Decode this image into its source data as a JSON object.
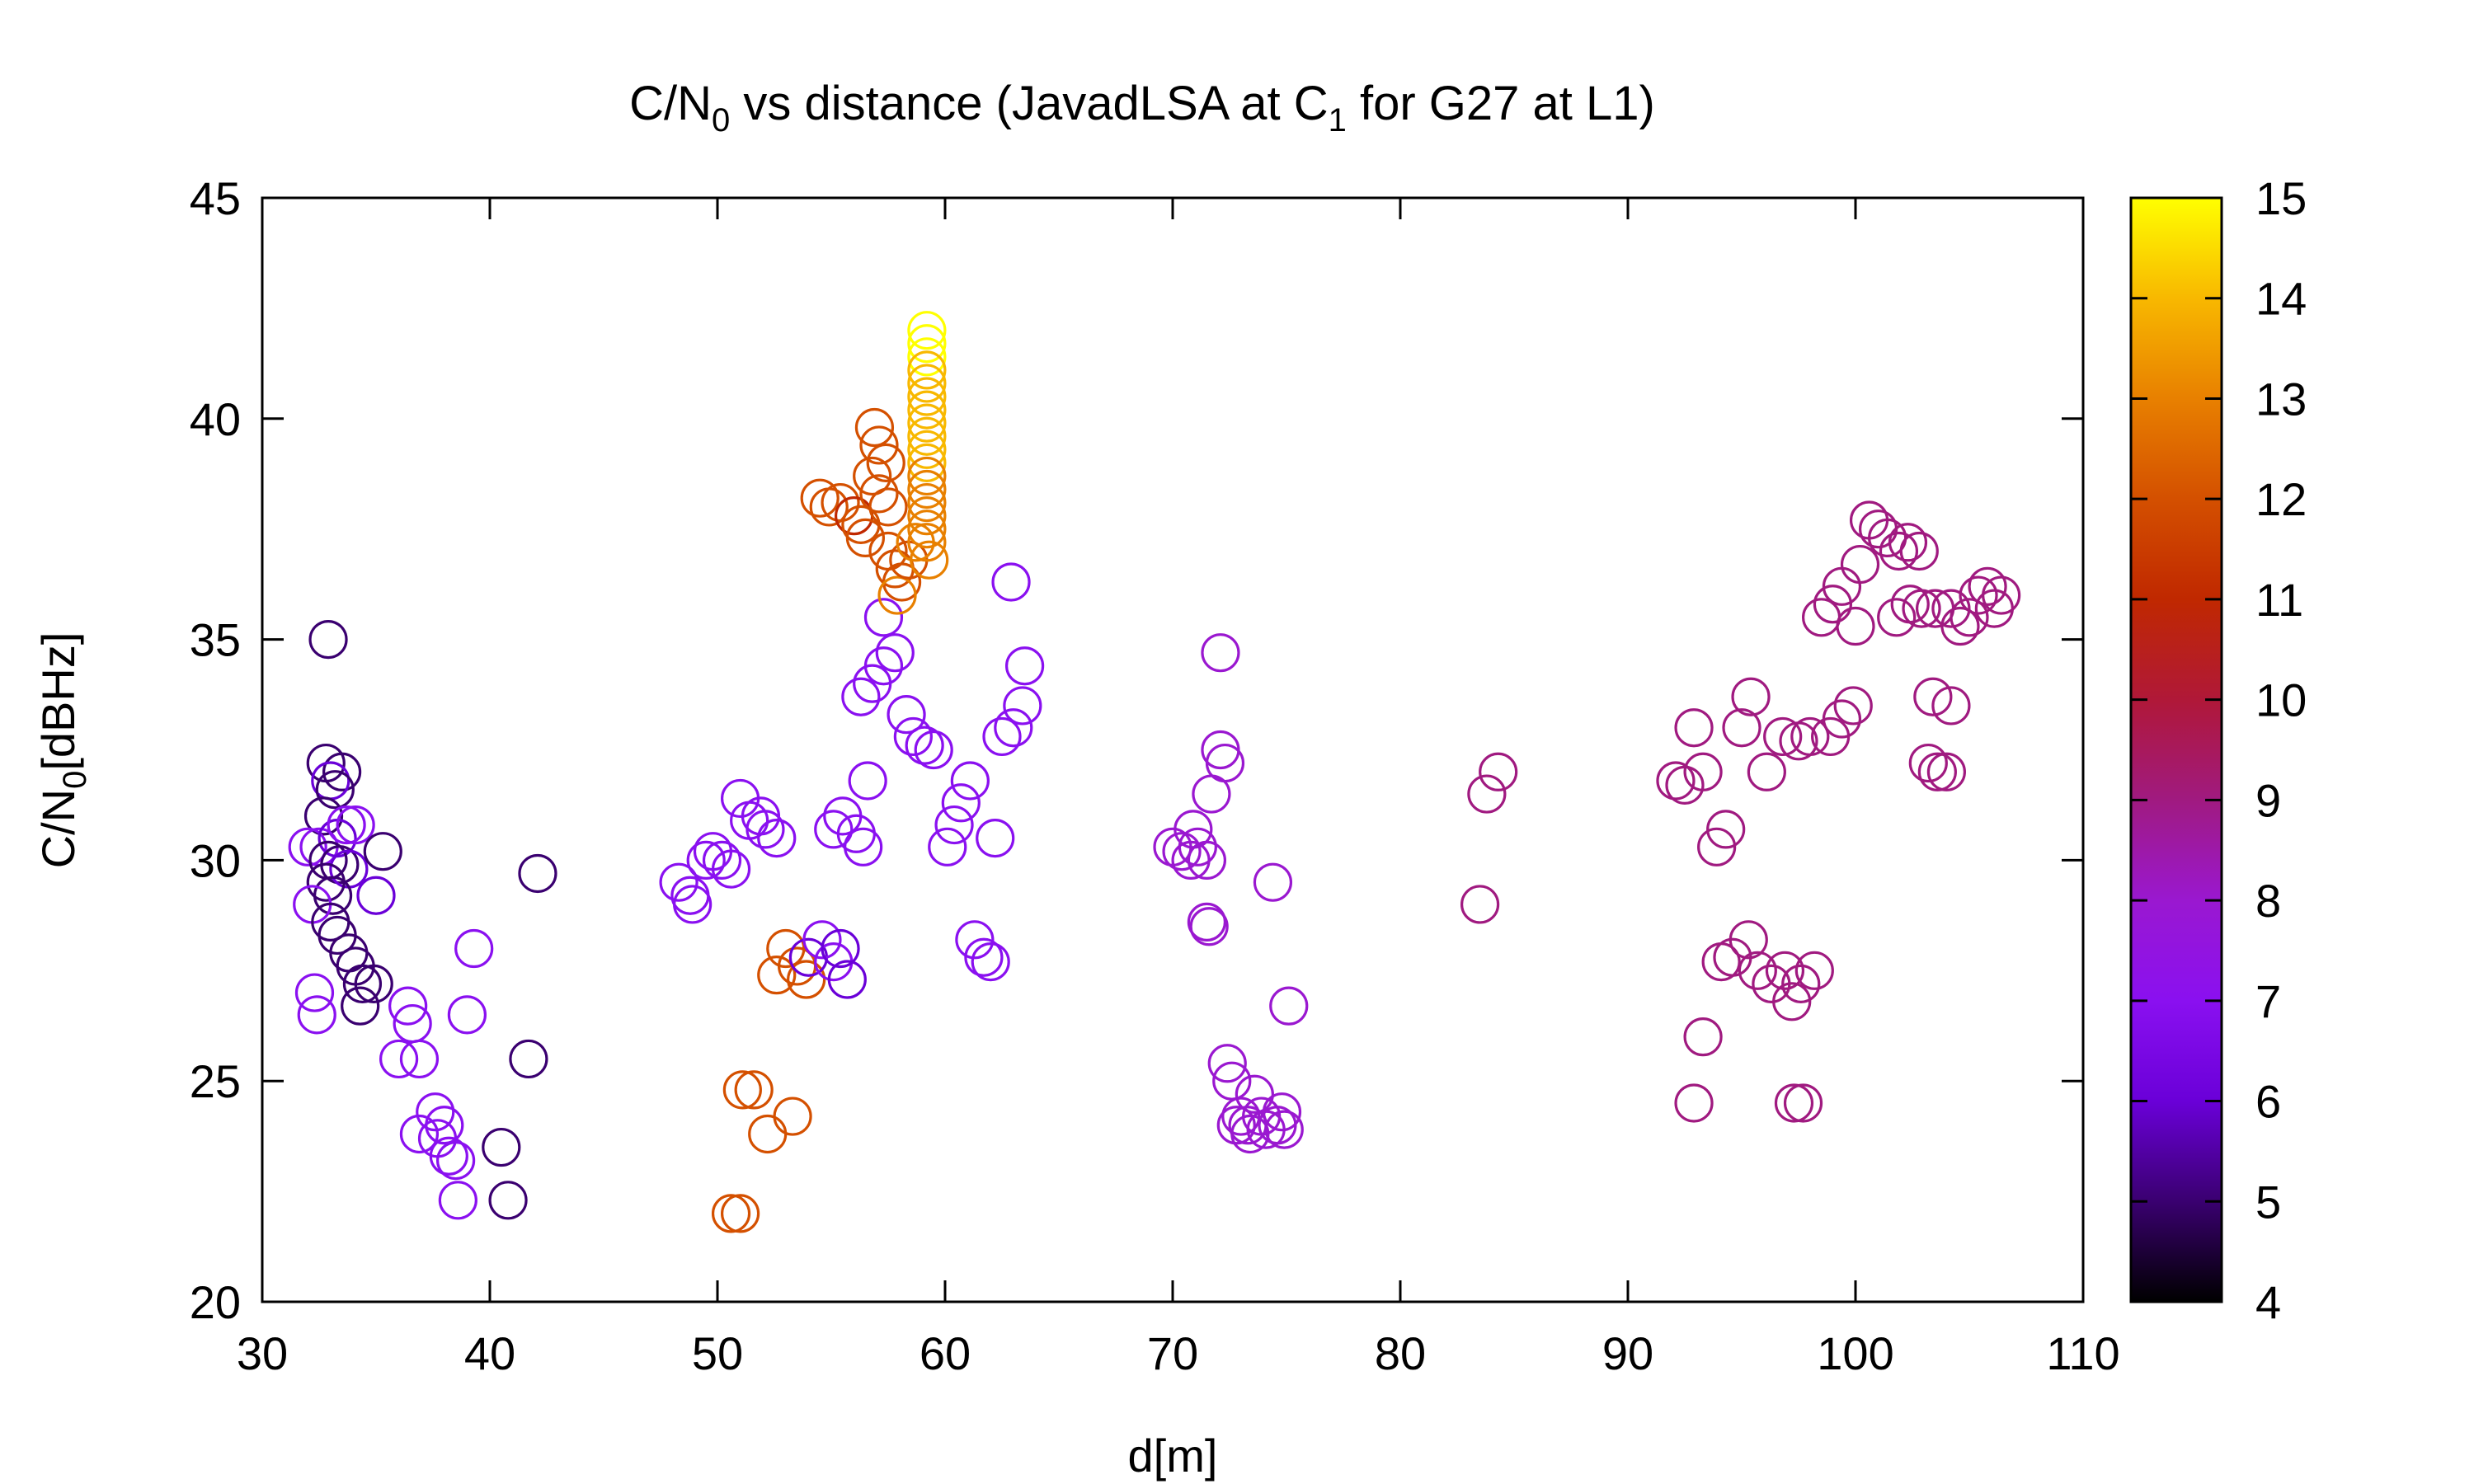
{
  "chart_data": {
    "type": "scatter",
    "title": {
      "prefix": "C/N",
      "sub0": "0",
      "mid": " vs distance (JavadLSA at C",
      "sub1": "1",
      "suffix": " for G27 at L1)"
    },
    "xlabel": "d[m]",
    "ylabel": {
      "prefix": "C/N",
      "sub": "0",
      "suffix": "[dBHz]"
    },
    "xlim": [
      30,
      110
    ],
    "ylim": [
      20,
      45
    ],
    "x_ticks": [
      "30",
      "40",
      "50",
      "60",
      "70",
      "80",
      "90",
      "100",
      "110"
    ],
    "y_ticks": [
      "20",
      "25",
      "30",
      "35",
      "40",
      "45"
    ],
    "colorbar": {
      "range": [
        4,
        15
      ],
      "ticks": [
        "4",
        "5",
        "6",
        "7",
        "8",
        "9",
        "10",
        "11",
        "12",
        "13",
        "14",
        "15"
      ],
      "palette": [
        "#000000",
        "#3a0070",
        "#6a00d8",
        "#8a10f0",
        "#9a18d0",
        "#a01a80",
        "#b01838",
        "#c02800",
        "#d45000",
        "#e88000",
        "#f8b800",
        "#ffff00"
      ]
    },
    "grid": false,
    "marker": "open-circle",
    "points": [
      [
        32.9,
        35.0,
        5
      ],
      [
        32.8,
        32.2,
        5
      ],
      [
        33.5,
        32.0,
        5
      ],
      [
        33.0,
        31.8,
        6
      ],
      [
        33.2,
        31.6,
        5
      ],
      [
        32.7,
        31.0,
        5
      ],
      [
        32.0,
        30.3,
        7
      ],
      [
        32.5,
        30.3,
        7
      ],
      [
        33.3,
        30.5,
        6
      ],
      [
        33.7,
        30.8,
        7
      ],
      [
        34.1,
        30.8,
        7
      ],
      [
        32.9,
        30.0,
        5
      ],
      [
        33.4,
        29.9,
        5
      ],
      [
        33.8,
        29.8,
        6
      ],
      [
        32.8,
        29.5,
        5
      ],
      [
        33.1,
        29.2,
        5
      ],
      [
        32.2,
        29.0,
        7
      ],
      [
        33.0,
        28.6,
        5
      ],
      [
        33.3,
        28.3,
        5
      ],
      [
        33.8,
        27.9,
        5
      ],
      [
        34.1,
        27.6,
        5
      ],
      [
        34.4,
        27.2,
        5
      ],
      [
        34.9,
        27.2,
        5
      ],
      [
        34.3,
        26.7,
        5
      ],
      [
        32.3,
        27.0,
        7
      ],
      [
        32.4,
        26.5,
        7
      ],
      [
        35.3,
        30.2,
        5
      ],
      [
        35.0,
        29.2,
        6
      ],
      [
        36.4,
        26.7,
        7
      ],
      [
        36.6,
        26.3,
        7
      ],
      [
        36.9,
        25.5,
        7
      ],
      [
        36.0,
        25.5,
        7
      ],
      [
        36.9,
        23.8,
        7
      ],
      [
        37.6,
        24.3,
        7
      ],
      [
        38.0,
        24.0,
        7
      ],
      [
        37.7,
        23.7,
        7
      ],
      [
        38.2,
        23.3,
        7
      ],
      [
        38.5,
        23.2,
        7
      ],
      [
        38.6,
        22.3,
        7
      ],
      [
        39.3,
        28.0,
        7
      ],
      [
        39.0,
        26.5,
        7
      ],
      [
        40.5,
        23.5,
        5
      ],
      [
        40.8,
        22.3,
        5
      ],
      [
        41.7,
        25.5,
        5
      ],
      [
        42.1,
        29.7,
        5
      ],
      [
        48.3,
        29.5,
        7
      ],
      [
        48.8,
        29.2,
        7
      ],
      [
        48.9,
        29.0,
        7
      ],
      [
        49.5,
        30.0,
        7
      ],
      [
        49.8,
        30.2,
        7
      ],
      [
        50.2,
        30.0,
        7
      ],
      [
        50.6,
        29.8,
        7
      ],
      [
        51.0,
        31.4,
        7
      ],
      [
        51.4,
        30.9,
        7
      ],
      [
        51.9,
        31.0,
        7
      ],
      [
        52.1,
        30.7,
        7
      ],
      [
        52.6,
        30.5,
        7
      ],
      [
        53.0,
        28.0,
        12
      ],
      [
        52.6,
        27.4,
        12
      ],
      [
        53.5,
        27.6,
        12
      ],
      [
        53.9,
        27.3,
        12
      ],
      [
        54.0,
        27.8,
        6
      ],
      [
        54.6,
        28.2,
        7
      ],
      [
        55.1,
        27.7,
        7
      ],
      [
        55.4,
        28.0,
        6
      ],
      [
        55.7,
        27.3,
        6
      ],
      [
        55.1,
        30.7,
        7
      ],
      [
        55.5,
        31.0,
        7
      ],
      [
        56.1,
        30.6,
        7
      ],
      [
        56.4,
        30.3,
        7
      ],
      [
        56.6,
        31.8,
        7
      ],
      [
        56.3,
        33.7,
        7
      ],
      [
        56.8,
        34.0,
        7
      ],
      [
        57.3,
        34.4,
        7
      ],
      [
        57.8,
        34.7,
        7
      ],
      [
        57.3,
        35.5,
        7
      ],
      [
        58.3,
        33.3,
        7
      ],
      [
        58.6,
        32.8,
        7
      ],
      [
        59.1,
        32.6,
        7
      ],
      [
        59.5,
        32.5,
        7
      ],
      [
        60.1,
        30.3,
        7
      ],
      [
        60.4,
        30.8,
        7
      ],
      [
        60.7,
        31.3,
        7
      ],
      [
        61.1,
        31.8,
        7
      ],
      [
        61.3,
        28.2,
        7
      ],
      [
        61.7,
        27.8,
        7
      ],
      [
        62.0,
        27.7,
        7
      ],
      [
        62.2,
        30.5,
        7
      ],
      [
        62.5,
        32.8,
        7
      ],
      [
        63.0,
        33.0,
        7
      ],
      [
        63.4,
        33.5,
        7
      ],
      [
        63.5,
        34.4,
        7
      ],
      [
        62.9,
        36.3,
        7
      ],
      [
        51.1,
        24.8,
        12
      ],
      [
        51.6,
        24.8,
        12
      ],
      [
        52.2,
        23.8,
        12
      ],
      [
        53.3,
        24.2,
        12
      ],
      [
        50.6,
        22.0,
        12
      ],
      [
        51.0,
        22.0,
        12
      ],
      [
        54.5,
        38.2,
        12
      ],
      [
        54.9,
        38.0,
        12
      ],
      [
        55.4,
        38.1,
        12
      ],
      [
        56.0,
        37.8,
        11
      ],
      [
        56.3,
        37.6,
        12
      ],
      [
        56.5,
        37.3,
        12
      ],
      [
        56.8,
        38.7,
        12
      ],
      [
        57.1,
        38.3,
        12
      ],
      [
        57.5,
        38.0,
        12
      ],
      [
        57.1,
        39.4,
        12
      ],
      [
        57.4,
        39.0,
        12
      ],
      [
        56.9,
        39.8,
        12
      ],
      [
        57.5,
        37.0,
        12
      ],
      [
        57.8,
        36.6,
        12
      ],
      [
        58.1,
        36.3,
        12
      ],
      [
        57.9,
        36.0,
        13
      ],
      [
        58.4,
        36.8,
        12
      ],
      [
        58.7,
        37.2,
        13
      ],
      [
        59.3,
        36.8,
        13
      ],
      [
        59.2,
        42.0,
        15
      ],
      [
        59.2,
        41.7,
        15
      ],
      [
        59.2,
        41.4,
        15
      ],
      [
        59.2,
        41.1,
        14
      ],
      [
        59.2,
        40.8,
        14
      ],
      [
        59.2,
        40.5,
        14
      ],
      [
        59.2,
        40.2,
        14
      ],
      [
        59.2,
        39.9,
        14
      ],
      [
        59.2,
        39.6,
        14
      ],
      [
        59.2,
        39.3,
        14
      ],
      [
        59.2,
        39.0,
        14
      ],
      [
        59.2,
        38.7,
        13
      ],
      [
        59.2,
        38.4,
        13
      ],
      [
        59.2,
        38.1,
        13
      ],
      [
        59.2,
        37.8,
        13
      ],
      [
        59.2,
        37.5,
        13
      ],
      [
        59.2,
        37.2,
        13
      ],
      [
        70.0,
        30.3,
        8
      ],
      [
        70.4,
        30.2,
        8
      ],
      [
        70.8,
        30.0,
        8
      ],
      [
        71.1,
        30.3,
        8
      ],
      [
        71.5,
        30.0,
        8
      ],
      [
        70.9,
        30.7,
        8
      ],
      [
        71.5,
        28.6,
        8
      ],
      [
        71.6,
        28.5,
        8
      ],
      [
        71.7,
        31.5,
        8
      ],
      [
        72.1,
        32.5,
        8
      ],
      [
        72.3,
        32.2,
        8
      ],
      [
        72.1,
        34.7,
        8
      ],
      [
        74.4,
        29.5,
        8
      ],
      [
        75.1,
        26.7,
        8
      ],
      [
        72.4,
        25.4,
        8
      ],
      [
        72.6,
        25.0,
        8
      ],
      [
        73.0,
        24.2,
        8
      ],
      [
        73.3,
        24.0,
        8
      ],
      [
        73.6,
        24.7,
        8
      ],
      [
        73.9,
        24.2,
        8
      ],
      [
        74.1,
        23.9,
        8
      ],
      [
        74.6,
        24.0,
        8
      ],
      [
        74.8,
        24.3,
        8
      ],
      [
        74.9,
        23.9,
        8
      ],
      [
        72.8,
        24.0,
        8
      ],
      [
        73.4,
        23.8,
        8
      ],
      [
        83.5,
        29.0,
        9
      ],
      [
        83.8,
        31.5,
        9
      ],
      [
        84.3,
        32.0,
        9
      ],
      [
        92.1,
        31.8,
        9
      ],
      [
        92.5,
        31.7,
        9
      ],
      [
        93.3,
        32.0,
        9
      ],
      [
        92.9,
        33.0,
        9
      ],
      [
        93.9,
        30.3,
        9
      ],
      [
        94.3,
        30.7,
        9
      ],
      [
        95.0,
        33.0,
        9
      ],
      [
        95.4,
        33.7,
        9
      ],
      [
        96.1,
        32.0,
        9
      ],
      [
        96.8,
        32.8,
        9
      ],
      [
        97.5,
        32.7,
        9
      ],
      [
        98.0,
        32.8,
        9
      ],
      [
        98.9,
        32.8,
        9
      ],
      [
        99.4,
        33.2,
        9
      ],
      [
        99.9,
        33.5,
        9
      ],
      [
        94.1,
        27.7,
        9
      ],
      [
        94.6,
        27.8,
        9
      ],
      [
        95.3,
        28.2,
        9
      ],
      [
        95.7,
        27.5,
        9
      ],
      [
        96.3,
        27.2,
        9
      ],
      [
        96.9,
        27.5,
        9
      ],
      [
        97.2,
        26.8,
        9
      ],
      [
        97.6,
        27.2,
        9
      ],
      [
        98.2,
        27.5,
        9
      ],
      [
        93.3,
        26.0,
        9
      ],
      [
        92.9,
        24.5,
        9
      ],
      [
        97.3,
        24.5,
        9
      ],
      [
        97.7,
        24.5,
        9
      ],
      [
        98.5,
        35.5,
        9
      ],
      [
        99.0,
        35.8,
        9
      ],
      [
        99.4,
        36.2,
        9
      ],
      [
        100.0,
        35.3,
        9
      ],
      [
        100.2,
        36.7,
        9
      ],
      [
        100.6,
        37.7,
        9
      ],
      [
        101.0,
        37.5,
        9
      ],
      [
        101.4,
        37.3,
        9
      ],
      [
        101.9,
        37.0,
        9
      ],
      [
        102.3,
        37.2,
        9
      ],
      [
        102.8,
        37.0,
        9
      ],
      [
        101.8,
        35.5,
        9
      ],
      [
        102.4,
        35.8,
        9
      ],
      [
        102.9,
        35.7,
        9
      ],
      [
        103.5,
        35.7,
        9
      ],
      [
        104.2,
        35.7,
        9
      ],
      [
        104.6,
        35.3,
        9
      ],
      [
        105.0,
        35.5,
        9
      ],
      [
        105.4,
        36.0,
        9
      ],
      [
        105.8,
        36.2,
        9
      ],
      [
        106.1,
        35.7,
        9
      ],
      [
        106.4,
        36.0,
        9
      ],
      [
        103.2,
        32.2,
        9
      ],
      [
        103.6,
        32.0,
        9
      ],
      [
        104.0,
        32.0,
        9
      ],
      [
        103.4,
        33.7,
        9
      ],
      [
        104.2,
        33.5,
        9
      ]
    ]
  }
}
